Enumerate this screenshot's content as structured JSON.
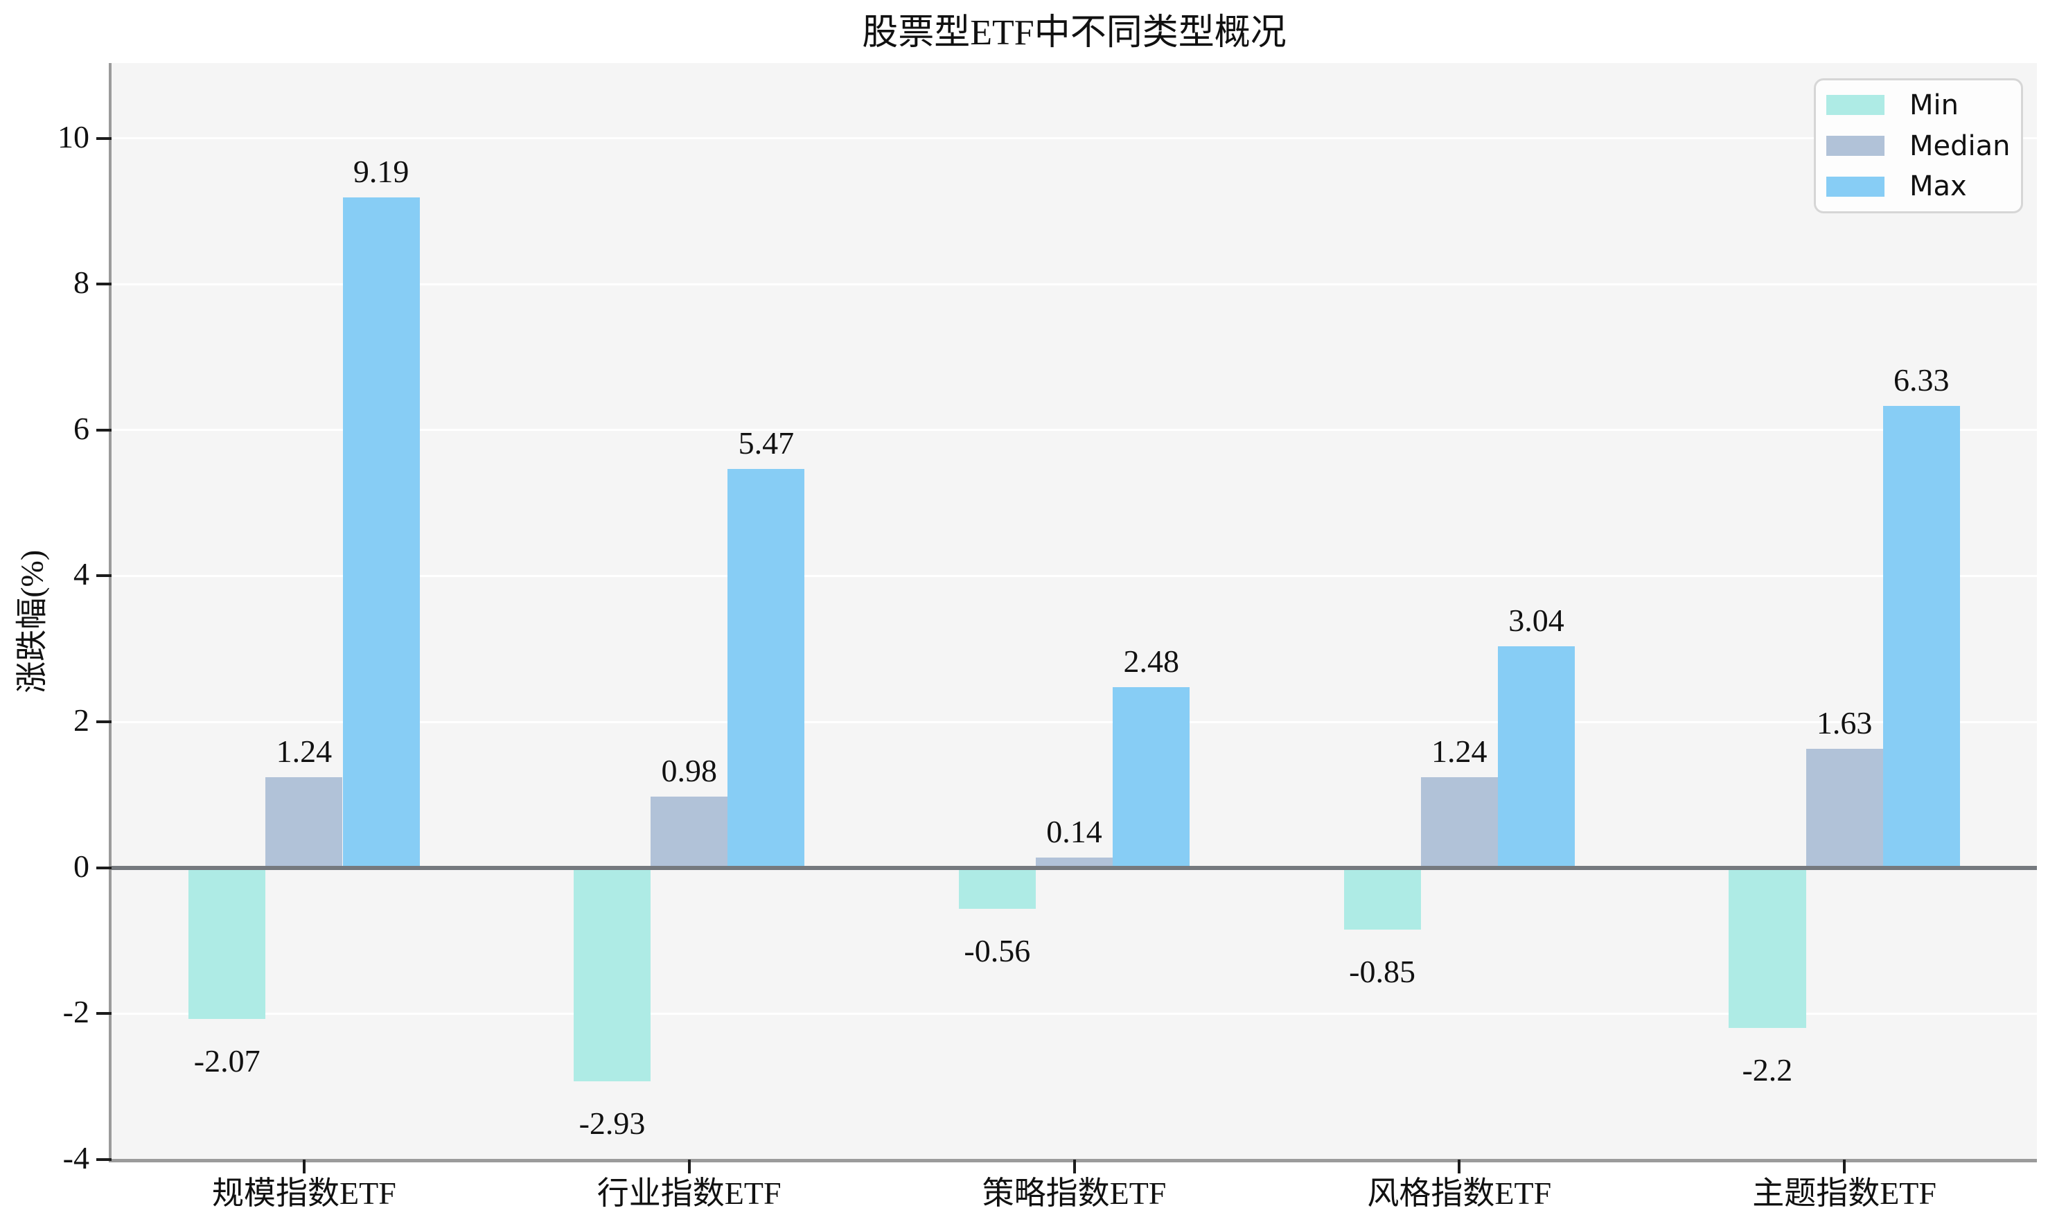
{
  "chart_data": {
    "type": "bar",
    "title": "股票型ETF中不同类型概况",
    "xlabel": "",
    "ylabel": "涨跌幅(%)",
    "categories": [
      "规模指数ETF",
      "行业指数ETF",
      "策略指数ETF",
      "风格指数ETF",
      "主题指数ETF"
    ],
    "series": [
      {
        "name": "Min",
        "color": "#aeebe5",
        "values": [
          -2.07,
          -2.93,
          -0.56,
          -0.85,
          -2.2
        ]
      },
      {
        "name": "Median",
        "color": "#b1c2d8",
        "values": [
          1.24,
          0.98,
          0.14,
          1.24,
          1.63
        ]
      },
      {
        "name": "Max",
        "color": "#87cdf5",
        "values": [
          9.19,
          5.47,
          2.48,
          3.04,
          6.33
        ]
      }
    ],
    "ylim": [
      -4,
      11.03
    ],
    "yticks": [
      -4,
      -2,
      0,
      2,
      4,
      6,
      8,
      10
    ],
    "grid": true,
    "grid_color": "#ffffff",
    "legend_position": "upper right",
    "bar_value_labels": true,
    "plot_background": "#f5f5f5",
    "figure_background": "#ffffff",
    "zero_line_color": "#75797e",
    "spine_color": "#9b9b9b",
    "tick_color": "#1c1c1c",
    "text_color": "#111111"
  }
}
